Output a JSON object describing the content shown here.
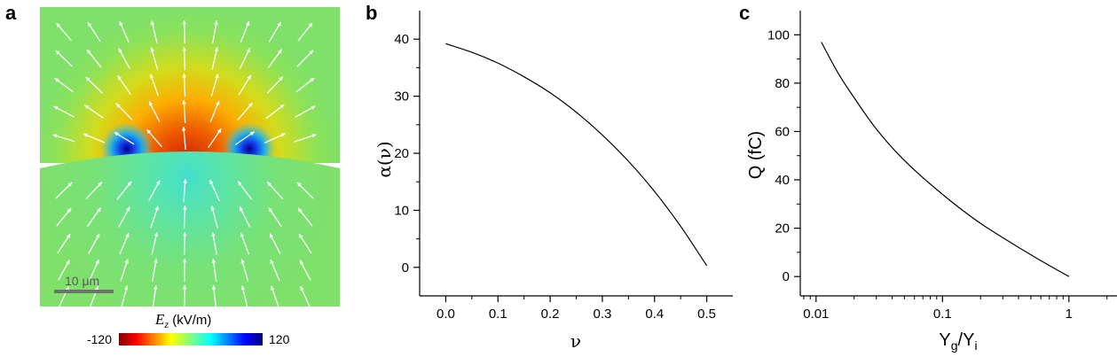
{
  "panels": {
    "a": {
      "letter": "a",
      "scale_bar_label": "10 μm",
      "colorbar": {
        "label_main": "E",
        "label_sub": "z",
        "label_unit": " (kV/m)",
        "min_label": "-120",
        "max_label": "120",
        "colormap": "jet"
      }
    },
    "b": {
      "letter": "b"
    },
    "c": {
      "letter": "c"
    }
  },
  "chart_data": [
    {
      "panel": "b",
      "type": "line",
      "title": "",
      "xlabel": "ν",
      "ylabel": "α(ν)",
      "xlim": [
        -0.05,
        0.55
      ],
      "ylim": [
        -5,
        45
      ],
      "xticks": [
        0.0,
        0.1,
        0.2,
        0.3,
        0.4,
        0.5
      ],
      "xtick_labels": [
        "0.0",
        "0.1",
        "0.2",
        "0.3",
        "0.4",
        "0.5"
      ],
      "yticks": [
        0,
        10,
        20,
        30,
        40
      ],
      "ytick_labels": [
        "0",
        "10",
        "20",
        "30",
        "40"
      ],
      "grid": false,
      "series": [
        {
          "x": [
            0.0,
            0.05,
            0.1,
            0.15,
            0.2,
            0.25,
            0.3,
            0.35,
            0.4,
            0.45,
            0.5
          ],
          "y": [
            39.2,
            37.7,
            35.8,
            33.4,
            30.6,
            27.2,
            23.2,
            18.6,
            13.3,
            7.2,
            0.3
          ]
        }
      ]
    },
    {
      "panel": "c",
      "type": "line",
      "title": "",
      "xlabel": "Y_g/Y_i",
      "ylabel": "Q (fC)",
      "xscale": "log",
      "xlim": [
        0.0075,
        2.4
      ],
      "ylim": [
        -8,
        110
      ],
      "xticks": [
        0.01,
        0.1,
        1
      ],
      "xtick_labels": [
        "0.01",
        "0.1",
        "1"
      ],
      "yticks": [
        0,
        20,
        40,
        60,
        80,
        100
      ],
      "ytick_labels": [
        "0",
        "20",
        "40",
        "60",
        "80",
        "100"
      ],
      "grid": false,
      "series": [
        {
          "x": [
            0.011,
            0.015,
            0.02,
            0.03,
            0.05,
            0.1,
            0.2,
            0.5,
            1.0
          ],
          "y": [
            97,
            84,
            74,
            61,
            48,
            34,
            22,
            9,
            0
          ]
        }
      ]
    }
  ]
}
